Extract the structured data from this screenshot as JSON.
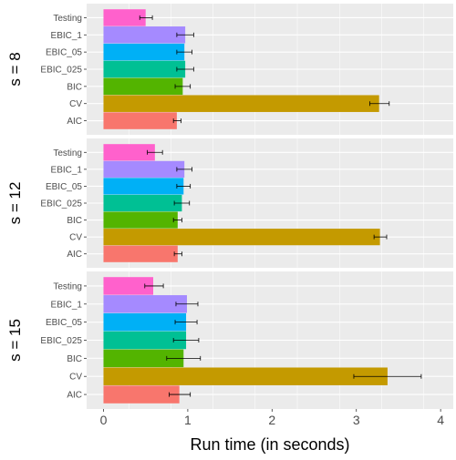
{
  "chart_data": {
    "type": "bar",
    "orientation": "horizontal",
    "xlabel": "Run time (in seconds)",
    "ylabel": "",
    "xlim": [
      -0.2,
      4.15
    ],
    "x_ticks": [
      0,
      1,
      2,
      3,
      4
    ],
    "grid": true,
    "legend": "none",
    "error_bars": true,
    "categories": [
      "Testing",
      "EBIC_1",
      "EBIC_05",
      "EBIC_025",
      "BIC",
      "CV",
      "AIC"
    ],
    "colors": {
      "Testing": "#FF61CC",
      "EBIC_1": "#A58AFF",
      "EBIC_05": "#00B0F6",
      "EBIC_025": "#00C094",
      "BIC": "#53B400",
      "CV": "#C49A00",
      "AIC": "#F8766D"
    },
    "panels": [
      {
        "label": "s = 8",
        "bars": [
          {
            "category": "Testing",
            "value": 0.5,
            "err_low": 0.43,
            "err_high": 0.58
          },
          {
            "category": "EBIC_1",
            "value": 0.97,
            "err_low": 0.87,
            "err_high": 1.07
          },
          {
            "category": "EBIC_05",
            "value": 0.96,
            "err_low": 0.87,
            "err_high": 1.05
          },
          {
            "category": "EBIC_025",
            "value": 0.97,
            "err_low": 0.87,
            "err_high": 1.07
          },
          {
            "category": "BIC",
            "value": 0.94,
            "err_low": 0.85,
            "err_high": 1.03
          },
          {
            "category": "CV",
            "value": 3.27,
            "err_low": 3.16,
            "err_high": 3.39
          },
          {
            "category": "AIC",
            "value": 0.87,
            "err_low": 0.83,
            "err_high": 0.92
          }
        ]
      },
      {
        "label": "s = 12",
        "bars": [
          {
            "category": "Testing",
            "value": 0.61,
            "err_low": 0.52,
            "err_high": 0.7
          },
          {
            "category": "EBIC_1",
            "value": 0.96,
            "err_low": 0.87,
            "err_high": 1.05
          },
          {
            "category": "EBIC_05",
            "value": 0.95,
            "err_low": 0.87,
            "err_high": 1.03
          },
          {
            "category": "EBIC_025",
            "value": 0.93,
            "err_low": 0.84,
            "err_high": 1.02
          },
          {
            "category": "BIC",
            "value": 0.88,
            "err_low": 0.83,
            "err_high": 0.93
          },
          {
            "category": "CV",
            "value": 3.28,
            "err_low": 3.21,
            "err_high": 3.36
          },
          {
            "category": "AIC",
            "value": 0.88,
            "err_low": 0.84,
            "err_high": 0.93
          }
        ]
      },
      {
        "label": "s = 15",
        "bars": [
          {
            "category": "Testing",
            "value": 0.59,
            "err_low": 0.49,
            "err_high": 0.71
          },
          {
            "category": "EBIC_1",
            "value": 0.99,
            "err_low": 0.86,
            "err_high": 1.12
          },
          {
            "category": "EBIC_05",
            "value": 0.98,
            "err_low": 0.85,
            "err_high": 1.11
          },
          {
            "category": "EBIC_025",
            "value": 0.98,
            "err_low": 0.83,
            "err_high": 1.13
          },
          {
            "category": "BIC",
            "value": 0.95,
            "err_low": 0.75,
            "err_high": 1.15
          },
          {
            "category": "CV",
            "value": 3.37,
            "err_low": 2.97,
            "err_high": 3.77
          },
          {
            "category": "AIC",
            "value": 0.9,
            "err_low": 0.78,
            "err_high": 1.03
          }
        ]
      }
    ]
  }
}
